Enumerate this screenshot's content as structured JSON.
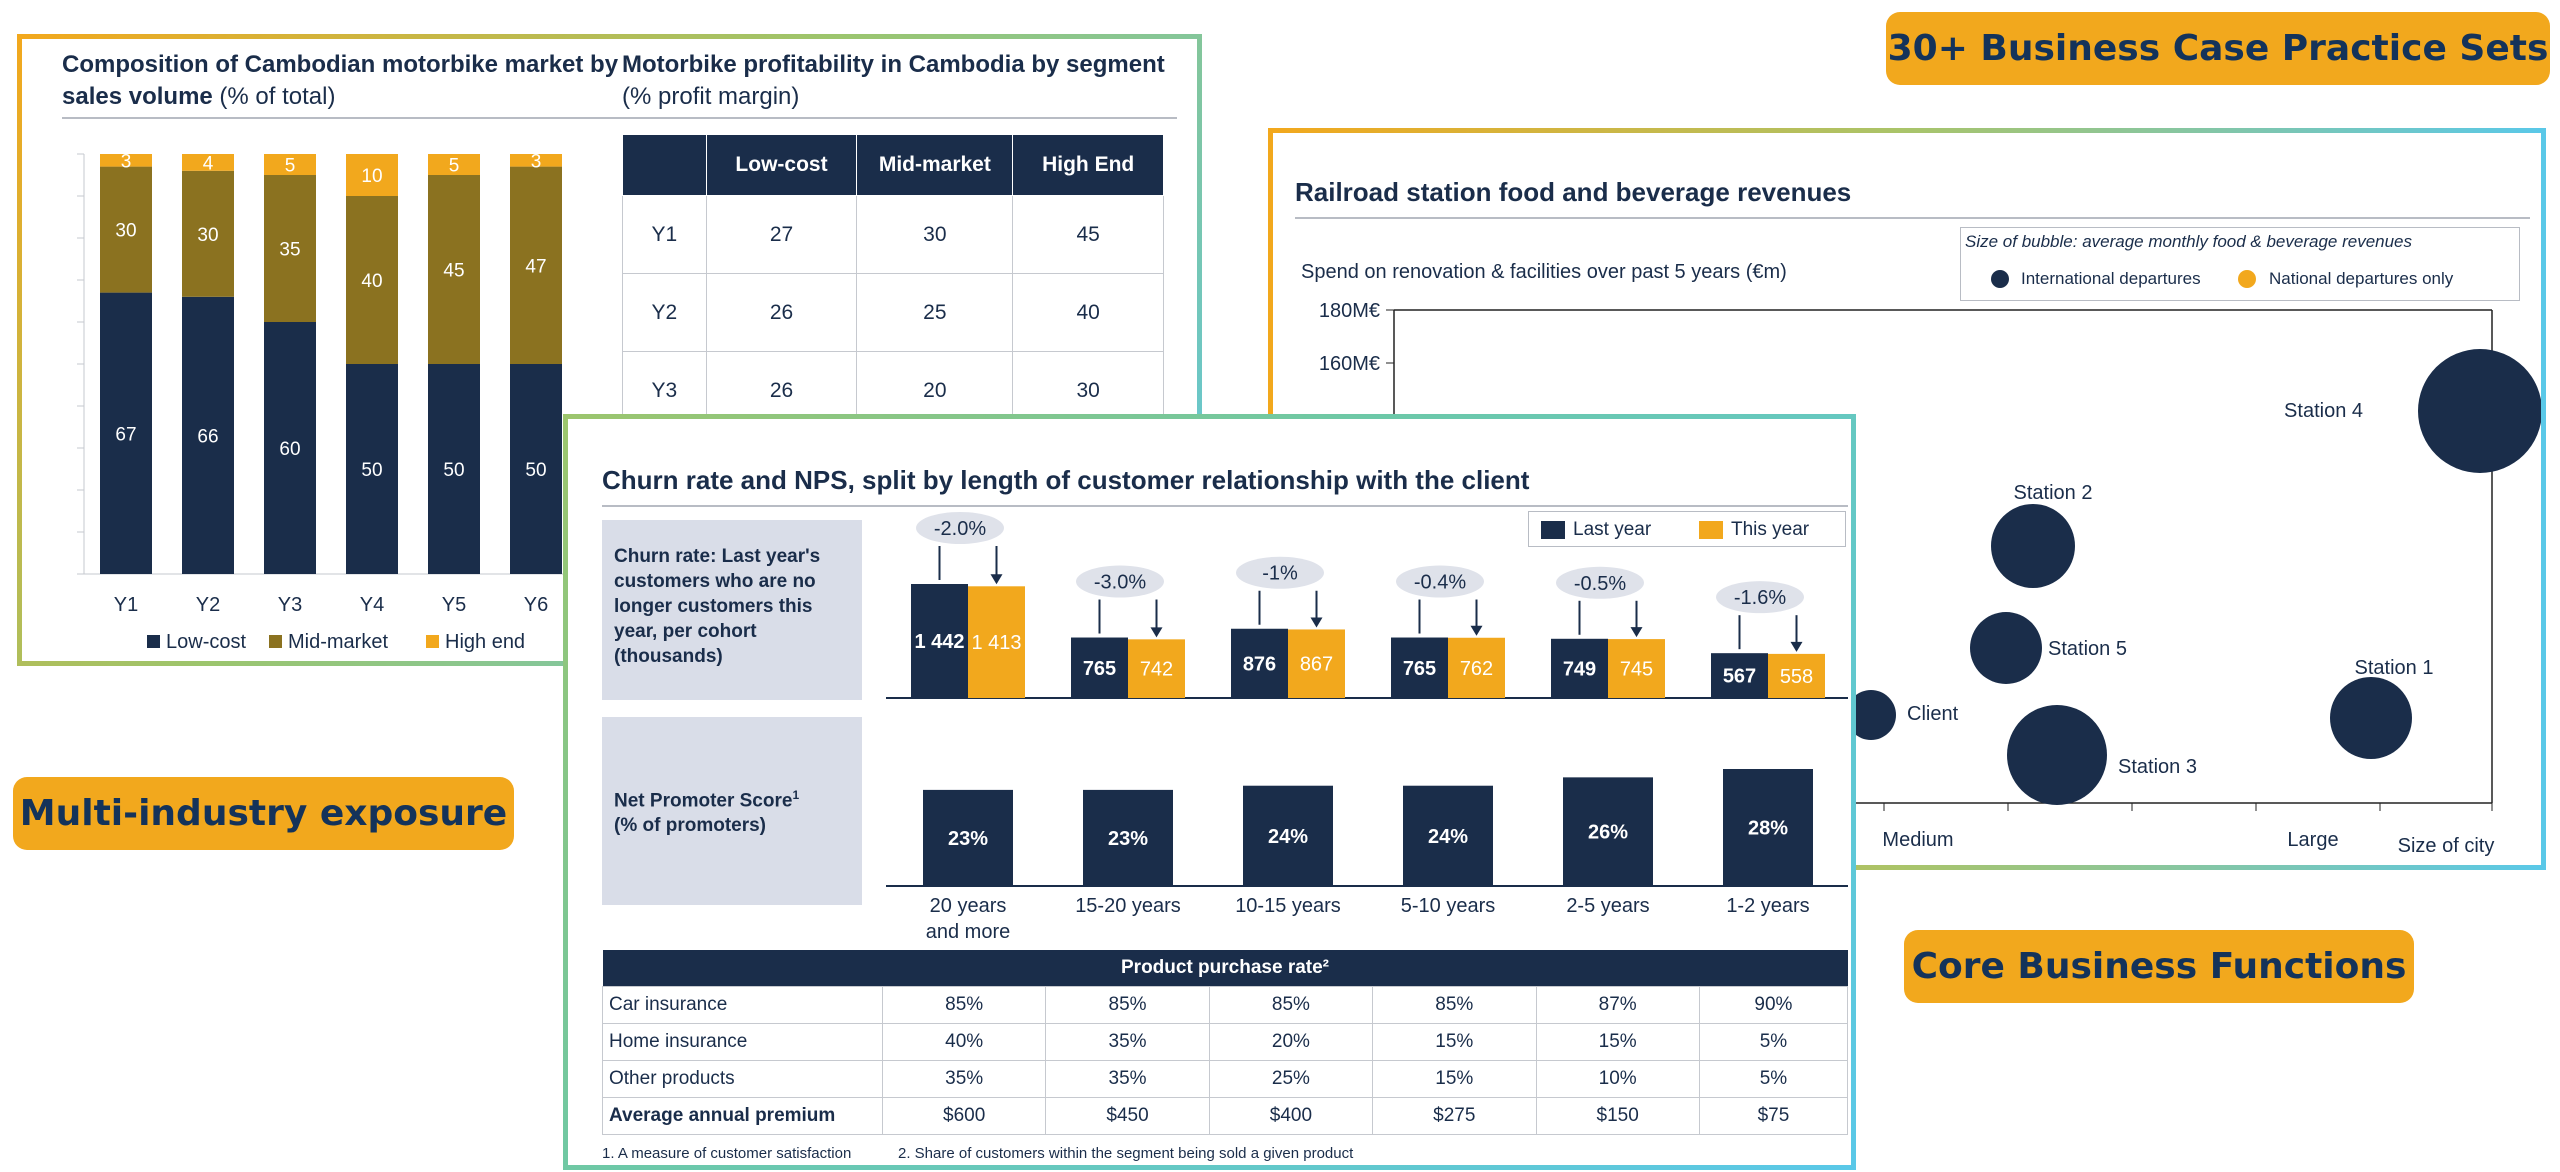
{
  "badges": {
    "top_right": "30+ Business Case Practice Sets",
    "left": "Multi-industry exposure",
    "bottom_right": "Core Business Functions"
  },
  "moto": {
    "title_bold": "Composition of Cambodian motorbike market by sales volume",
    "title_unit": "(% of total)",
    "legend": [
      "Low-cost",
      "Mid-market",
      "High end"
    ]
  },
  "profit": {
    "title_bold": "Motorbike profitability in Cambodia by segment",
    "title_unit": "(% profit margin)",
    "headers": [
      "",
      "Low-cost",
      "Mid-market",
      "High End"
    ],
    "rows": [
      [
        "Y1",
        "27",
        "30",
        "45"
      ],
      [
        "Y2",
        "26",
        "25",
        "40"
      ],
      [
        "Y3",
        "26",
        "20",
        "30"
      ]
    ]
  },
  "rail": {
    "title": "Railroad station food and beverage revenues",
    "legend_title": "Size of bubble: average monthly food & beverage revenues",
    "legend_items": [
      "International departures",
      "National departures only"
    ],
    "y_axis_label": "Spend on renovation & facilities over past 5 years (€m)",
    "y_ticks": [
      "180M€",
      "160M€"
    ],
    "x_ticks": [
      "Medium",
      "Large"
    ],
    "x_axis_label": "Size of city"
  },
  "churn": {
    "title": "Churn rate and NPS, split by length of customer relationship with the client",
    "legend": [
      "Last year",
      "This year"
    ],
    "churn_label": "Churn rate: Last year's customers who are no longer customers this year, per cohort (thousands)",
    "nps_label_main": "Net Promoter Score",
    "nps_label_sup": "1",
    "nps_label_unit": "(% of promoters)",
    "table_header": "Product purchase rate²",
    "rows": [
      {
        "label": "Car insurance",
        "values": [
          "85%",
          "85%",
          "85%",
          "85%",
          "87%",
          "90%"
        ]
      },
      {
        "label": "Home insurance",
        "values": [
          "40%",
          "35%",
          "20%",
          "15%",
          "15%",
          "5%"
        ]
      },
      {
        "label": "Other products",
        "values": [
          "35%",
          "35%",
          "25%",
          "15%",
          "10%",
          "5%"
        ]
      },
      {
        "label": "Average annual premium",
        "values": [
          "$600",
          "$450",
          "$400",
          "$275",
          "$150",
          "$75"
        ],
        "bold": true
      }
    ],
    "footnote1": "1. A measure of customer satisfaction",
    "footnote2": "2. Share of customers within the segment being sold a given product"
  },
  "colors": {
    "navy": "#1a2d4a",
    "olive": "#8b7220",
    "amber": "#f2a81d",
    "grey_box": "#d9dde8"
  },
  "chart_data": [
    {
      "type": "bar",
      "stacked": true,
      "categories": [
        "Y1",
        "Y2",
        "Y3",
        "Y4",
        "Y5",
        "Y6"
      ],
      "series": [
        {
          "name": "Low-cost",
          "values": [
            67,
            66,
            60,
            50,
            50,
            50
          ]
        },
        {
          "name": "Mid-market",
          "values": [
            30,
            30,
            35,
            40,
            45,
            47
          ]
        },
        {
          "name": "High end",
          "values": [
            3,
            4,
            5,
            10,
            5,
            3
          ]
        }
      ],
      "ylim": [
        0,
        100
      ],
      "legend": "bottom"
    },
    {
      "type": "scatter",
      "ylim": [
        0,
        180
      ],
      "y_unit": "M€",
      "points": [
        {
          "label": "Station 4",
          "size": "large",
          "series": "International departures"
        },
        {
          "label": "Station 2",
          "size": "medium",
          "series": "International departures"
        },
        {
          "label": "Station 5",
          "size": "small",
          "series": "International departures"
        },
        {
          "label": "Client",
          "size": "small",
          "series": "International departures"
        },
        {
          "label": "Station 3",
          "size": "large",
          "series": "International departures"
        },
        {
          "label": "Station 1",
          "size": "medium",
          "series": "International departures"
        }
      ]
    },
    {
      "type": "bar",
      "categories": [
        "20 years and more",
        "15-20 years",
        "10-15 years",
        "5-10 years",
        "2-5 years",
        "1-2 years"
      ],
      "series": [
        {
          "name": "Last year",
          "values": [
            1442,
            765,
            876,
            765,
            749,
            567
          ],
          "labels": [
            "1 442",
            "765",
            "876",
            "765",
            "749",
            "567"
          ]
        },
        {
          "name": "This year",
          "values": [
            1413,
            742,
            867,
            762,
            745,
            558
          ],
          "labels": [
            "1 413",
            "742",
            "867",
            "762",
            "745",
            "558"
          ]
        }
      ],
      "changes": [
        "-2.0%",
        "-3.0%",
        "-1%",
        "-0.4%",
        "-0.5%",
        "-1.6%"
      ]
    },
    {
      "type": "bar",
      "categories": [
        "20 years and more",
        "15-20 years",
        "10-15 years",
        "5-10 years",
        "2-5 years",
        "1-2 years"
      ],
      "values": [
        23,
        23,
        24,
        24,
        26,
        28
      ],
      "labels": [
        "23%",
        "23%",
        "24%",
        "24%",
        "26%",
        "28%"
      ]
    }
  ]
}
